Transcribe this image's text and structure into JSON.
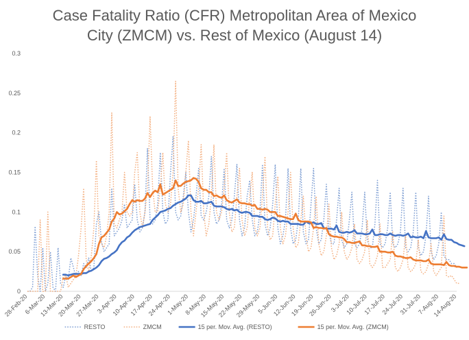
{
  "chart_data": {
    "type": "line",
    "title_line1": "Case Fatality Ratio (CFR) Metropolitan Area of Mexico",
    "title_line2": "City (ZMCM) vs. Rest of Mexico (August 14)",
    "xlabel": "",
    "ylabel": "",
    "ylim": [
      0,
      0.3
    ],
    "yticks": [
      "0",
      "0.05",
      "0.1",
      "0.15",
      "0.2",
      "0.25",
      "0.3"
    ],
    "grid": false,
    "legend_position": "bottom",
    "x_tick_labels": [
      "28-Feb-20",
      "6-Mar-20",
      "13-Mar-20",
      "20-Mar-20",
      "27-Mar-20",
      "3-Apr-20",
      "10-Apr-20",
      "17-Apr-20",
      "24-Apr-20",
      "1-May-20",
      "8-May-20",
      "15-May-20",
      "22-May-20",
      "29-May-20",
      "5-Jun-20",
      "12-Jun-20",
      "19-Jun-20",
      "26-Jun-20",
      "3-Jul-20",
      "10-Jul-20",
      "17-Jul-20",
      "24-Jul-20",
      "31-Jul-20",
      "7-Aug-20",
      "14-Aug-20"
    ],
    "x_start": "28-Feb-20",
    "num_days": 169,
    "series": [
      {
        "name": "RESTO",
        "style": "dotted",
        "color": "#7f9fd3",
        "values": [
          0,
          0,
          0.005,
          0.082,
          0.02,
          0,
          0.055,
          0,
          0.01,
          0.05,
          0.005,
          0,
          0.055,
          0.01,
          0.005,
          0.02,
          0.015,
          0.042,
          0.03,
          0.018,
          0.025,
          0.02,
          0.035,
          0.03,
          0.042,
          0.025,
          0.03,
          0.085,
          0.1,
          0.062,
          0.05,
          0.055,
          0.06,
          0.13,
          0.07,
          0.075,
          0.08,
          0.09,
          0.11,
          0.08,
          0.085,
          0.09,
          0.135,
          0.09,
          0.075,
          0.08,
          0.1,
          0.18,
          0.09,
          0.085,
          0.09,
          0.11,
          0.175,
          0.1,
          0.085,
          0.09,
          0.15,
          0.195,
          0.1,
          0.09,
          0.095,
          0.12,
          0.15,
          0.1,
          0.075,
          0.09,
          0.12,
          0.155,
          0.095,
          0.09,
          0.1,
          0.12,
          0.17,
          0.1,
          0.085,
          0.09,
          0.11,
          0.155,
          0.09,
          0.08,
          0.09,
          0.12,
          0.16,
          0.09,
          0.07,
          0.08,
          0.12,
          0.14,
          0.09,
          0.07,
          0.075,
          0.1,
          0.16,
          0.085,
          0.07,
          0.08,
          0.11,
          0.16,
          0.08,
          0.06,
          0.07,
          0.09,
          0.155,
          0.08,
          0.06,
          0.065,
          0.09,
          0.155,
          0.075,
          0.06,
          0.065,
          0.11,
          0.155,
          0.08,
          0.06,
          0.065,
          0.09,
          0.135,
          0.075,
          0.06,
          0.06,
          0.09,
          0.13,
          0.065,
          0.055,
          0.06,
          0.09,
          0.125,
          0.06,
          0.055,
          0.06,
          0.08,
          0.125,
          0.065,
          0.055,
          0.055,
          0.085,
          0.14,
          0.06,
          0.055,
          0.06,
          0.08,
          0.125,
          0.06,
          0.055,
          0.06,
          0.075,
          0.13,
          0.055,
          0.05,
          0.055,
          0.075,
          0.125,
          0.055,
          0.045,
          0.05,
          0.07,
          0.12,
          0.05,
          0.04,
          0.045,
          0.06,
          0.1,
          0.045,
          0.04,
          0.04,
          0.035,
          0.035,
          0.03
        ]
      },
      {
        "name": "ZMCM",
        "style": "dotted",
        "color": "#f4b183",
        "values": [
          0,
          0,
          0,
          0,
          0,
          0.09,
          0,
          0,
          0.1,
          0,
          0,
          0,
          0,
          0,
          0.018,
          0.02,
          0.005,
          0.01,
          0.015,
          0.02,
          0.045,
          0.08,
          0.13,
          0.04,
          0.025,
          0.045,
          0.08,
          0.165,
          0.07,
          0.06,
          0.055,
          0.07,
          0.1,
          0.225,
          0.085,
          0.08,
          0.09,
          0.1,
          0.15,
          0.1,
          0.095,
          0.1,
          0.15,
          0.175,
          0.1,
          0.08,
          0.1,
          0.13,
          0.22,
          0.13,
          0.1,
          0.1,
          0.13,
          0.175,
          0.11,
          0.1,
          0.11,
          0.15,
          0.265,
          0.13,
          0.1,
          0.11,
          0.15,
          0.19,
          0.1,
          0.07,
          0.1,
          0.13,
          0.185,
          0.1,
          0.07,
          0.085,
          0.12,
          0.185,
          0.1,
          0.09,
          0.1,
          0.13,
          0.175,
          0.1,
          0.075,
          0.08,
          0.12,
          0.155,
          0.09,
          0.07,
          0.08,
          0.12,
          0.15,
          0.08,
          0.07,
          0.08,
          0.12,
          0.17,
          0.08,
          0.065,
          0.07,
          0.11,
          0.145,
          0.08,
          0.06,
          0.07,
          0.1,
          0.15,
          0.08,
          0.055,
          0.06,
          0.09,
          0.12,
          0.07,
          0.05,
          0.055,
          0.08,
          0.12,
          0.06,
          0.045,
          0.05,
          0.07,
          0.11,
          0.055,
          0.04,
          0.045,
          0.06,
          0.1,
          0.05,
          0.04,
          0.045,
          0.055,
          0.085,
          0.04,
          0.035,
          0.04,
          0.05,
          0.09,
          0.035,
          0.03,
          0.035,
          0.045,
          0.085,
          0.03,
          0.03,
          0.035,
          0.04,
          0.075,
          0.03,
          0.025,
          0.03,
          0.04,
          0.07,
          0.03,
          0.025,
          0.028,
          0.035,
          0.065,
          0.025,
          0.022,
          0.025,
          0.035,
          0.06,
          0.025,
          0.02,
          0.025,
          0.03,
          0.095,
          0.02,
          0.018,
          0.02,
          0.015,
          0.01,
          0.01
        ]
      },
      {
        "name": "15 per. Mov. Avg. (RESTO)",
        "style": "solid",
        "color": "#4472c4",
        "values": [
          null,
          null,
          null,
          null,
          null,
          null,
          null,
          null,
          null,
          null,
          null,
          null,
          null,
          null,
          0.021,
          0.021,
          0.02,
          0.021,
          0.022,
          0.022,
          0.022,
          0.022,
          0.023,
          0.023,
          0.025,
          0.026,
          0.028,
          0.03,
          0.033,
          0.038,
          0.041,
          0.042,
          0.044,
          0.047,
          0.049,
          0.052,
          0.058,
          0.062,
          0.064,
          0.068,
          0.07,
          0.074,
          0.077,
          0.079,
          0.081,
          0.082,
          0.083,
          0.084,
          0.085,
          0.09,
          0.093,
          0.096,
          0.1,
          0.101,
          0.102,
          0.104,
          0.105,
          0.108,
          0.11,
          0.112,
          0.113,
          0.115,
          0.117,
          0.121,
          0.121,
          0.115,
          0.113,
          0.113,
          0.114,
          0.111,
          0.111,
          0.112,
          0.113,
          0.108,
          0.107,
          0.107,
          0.107,
          0.106,
          0.104,
          0.103,
          0.104,
          0.102,
          0.103,
          0.1,
          0.099,
          0.1,
          0.1,
          0.099,
          0.095,
          0.095,
          0.095,
          0.094,
          0.094,
          0.091,
          0.09,
          0.091,
          0.093,
          0.092,
          0.089,
          0.088,
          0.089,
          0.088,
          0.088,
          0.085,
          0.085,
          0.085,
          0.085,
          0.084,
          0.084,
          0.088,
          0.086,
          0.086,
          0.087,
          0.085,
          0.085,
          0.086,
          0.08,
          0.079,
          0.079,
          0.079,
          0.078,
          0.083,
          0.075,
          0.074,
          0.074,
          0.075,
          0.074,
          0.075,
          0.077,
          0.073,
          0.073,
          0.073,
          0.072,
          0.072,
          0.073,
          0.078,
          0.071,
          0.071,
          0.072,
          0.072,
          0.071,
          0.071,
          0.073,
          0.071,
          0.07,
          0.071,
          0.071,
          0.07,
          0.071,
          0.073,
          0.068,
          0.069,
          0.068,
          0.068,
          0.069,
          0.067,
          0.076,
          0.068,
          0.067,
          0.067,
          0.067,
          0.068,
          0.065,
          0.072,
          0.066,
          0.065,
          0.065,
          0.062,
          0.061,
          0.059,
          0.058,
          0.057
        ]
      },
      {
        "name": "15 per. Mov. Avg. (ZMCM)",
        "style": "solid",
        "color": "#ed7d31",
        "values": [
          null,
          null,
          null,
          null,
          null,
          null,
          null,
          null,
          null,
          null,
          null,
          null,
          null,
          null,
          0.016,
          0.016,
          0.016,
          0.018,
          0.02,
          0.018,
          0.02,
          0.022,
          0.028,
          0.032,
          0.035,
          0.038,
          0.042,
          0.047,
          0.06,
          0.068,
          0.07,
          0.074,
          0.078,
          0.088,
          0.092,
          0.1,
          0.097,
          0.098,
          0.101,
          0.104,
          0.11,
          0.115,
          0.113,
          0.115,
          0.114,
          0.114,
          0.117,
          0.124,
          0.119,
          0.124,
          0.127,
          0.125,
          0.135,
          0.122,
          0.124,
          0.126,
          0.128,
          0.13,
          0.14,
          0.133,
          0.133,
          0.136,
          0.138,
          0.139,
          0.14,
          0.143,
          0.142,
          0.138,
          0.13,
          0.128,
          0.128,
          0.125,
          0.125,
          0.12,
          0.121,
          0.119,
          0.118,
          0.121,
          0.115,
          0.113,
          0.112,
          0.114,
          0.116,
          0.112,
          0.111,
          0.111,
          0.11,
          0.11,
          0.108,
          0.109,
          0.104,
          0.104,
          0.103,
          0.104,
          0.103,
          0.1,
          0.1,
          0.1,
          0.095,
          0.095,
          0.094,
          0.093,
          0.092,
          0.091,
          0.091,
          0.098,
          0.09,
          0.088,
          0.088,
          0.088,
          0.088,
          0.087,
          0.08,
          0.081,
          0.08,
          0.08,
          0.079,
          0.08,
          0.072,
          0.07,
          0.069,
          0.069,
          0.068,
          0.068,
          0.066,
          0.062,
          0.062,
          0.061,
          0.061,
          0.062,
          0.063,
          0.058,
          0.058,
          0.057,
          0.057,
          0.056,
          0.056,
          0.057,
          0.05,
          0.05,
          0.05,
          0.049,
          0.049,
          0.05,
          0.045,
          0.044,
          0.044,
          0.043,
          0.042,
          0.042,
          0.043,
          0.04,
          0.039,
          0.039,
          0.039,
          0.038,
          0.038,
          0.04,
          0.035,
          0.034,
          0.034,
          0.034,
          0.034,
          0.033,
          0.037,
          0.033,
          0.032,
          0.032,
          0.031,
          0.031,
          0.03,
          0.03,
          0.03
        ]
      }
    ]
  }
}
